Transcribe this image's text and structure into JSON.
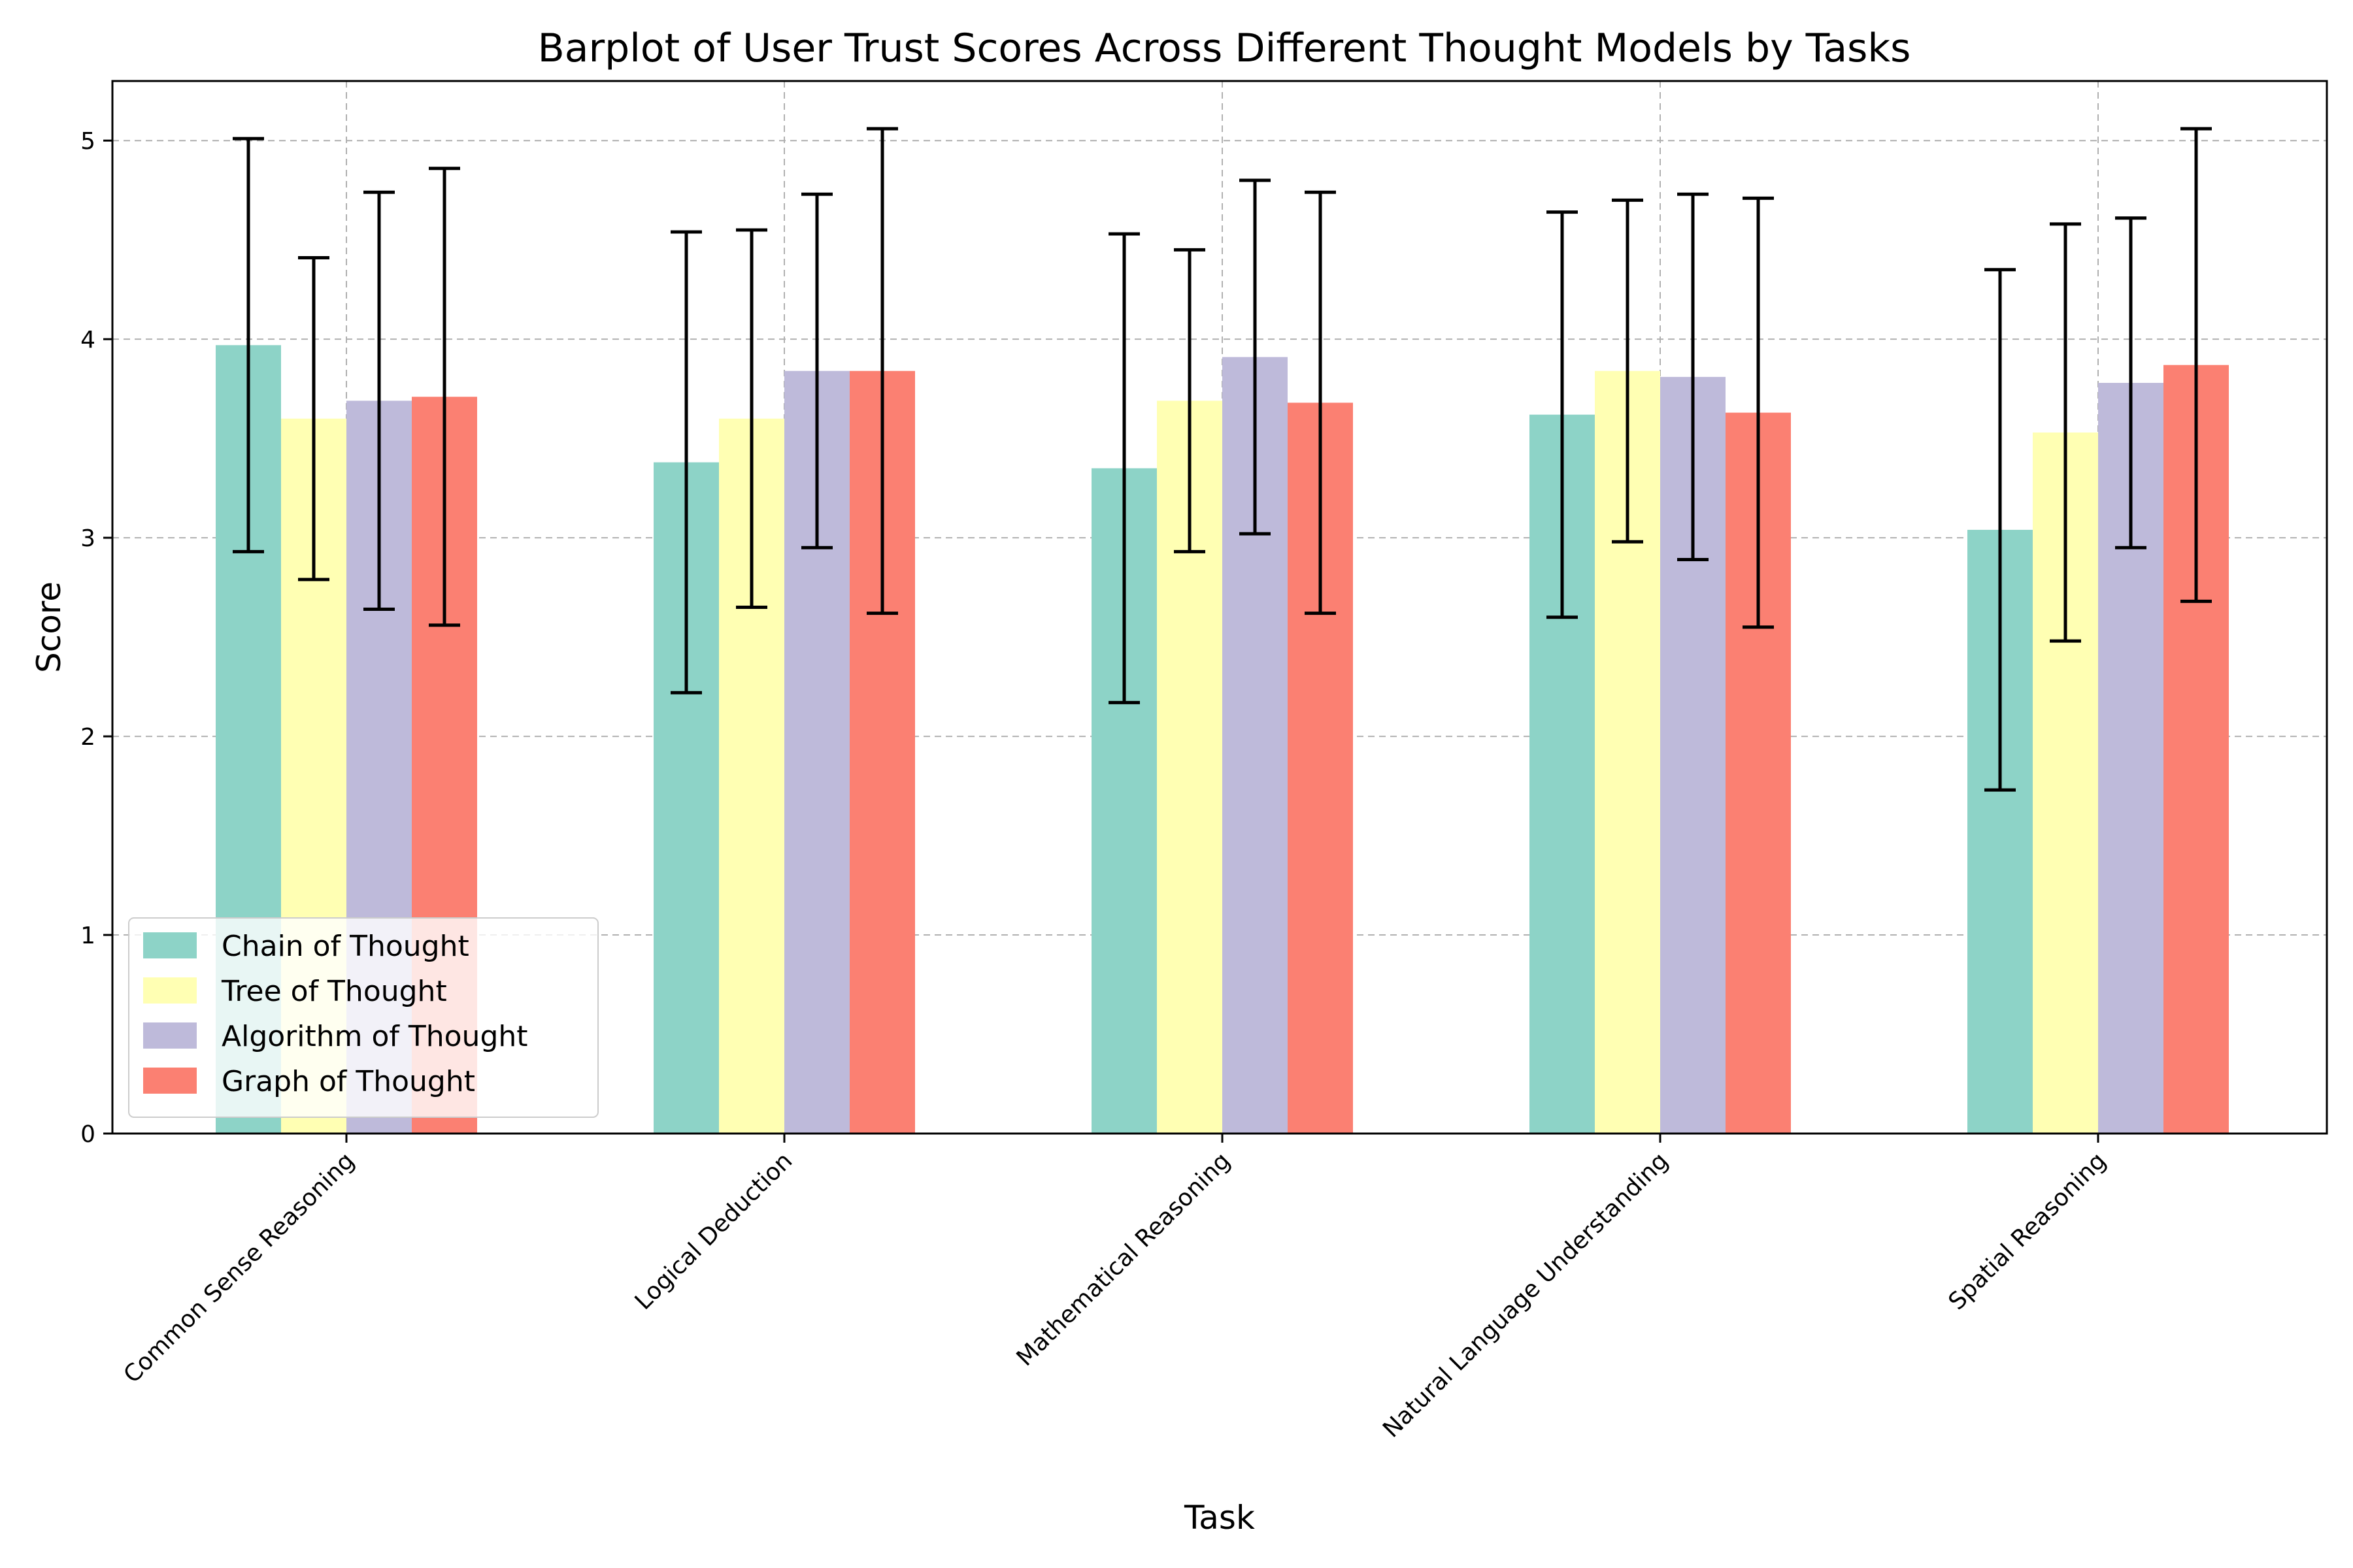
{
  "chart_data": {
    "type": "bar",
    "title": "Barplot of User Trust Scores Across Different Thought Models by Tasks",
    "xlabel": "Task",
    "ylabel": "Score",
    "ylim": [
      0,
      5.3
    ],
    "yticks": [
      0,
      1,
      2,
      3,
      4,
      5
    ],
    "grid": true,
    "legend_position": "lower-left",
    "categories": [
      "Common Sense Reasoning",
      "Logical Deduction",
      "Mathematical Reasoning",
      "Natural Language Understanding",
      "Spatial Reasoning"
    ],
    "series": [
      {
        "name": "Chain of Thought",
        "color": "#8dd3c7",
        "values": [
          3.97,
          3.38,
          3.35,
          3.62,
          3.04
        ],
        "errors": [
          1.04,
          1.16,
          1.18,
          1.02,
          1.31
        ]
      },
      {
        "name": "Tree of Thought",
        "color": "#ffffb3",
        "values": [
          3.6,
          3.6,
          3.69,
          3.84,
          3.53
        ],
        "errors": [
          0.81,
          0.95,
          0.76,
          0.86,
          1.05
        ]
      },
      {
        "name": "Algorithm of Thought",
        "color": "#bebada",
        "values": [
          3.69,
          3.84,
          3.91,
          3.81,
          3.78
        ],
        "errors": [
          1.05,
          0.89,
          0.89,
          0.92,
          0.83
        ]
      },
      {
        "name": "Graph of Thought",
        "color": "#fb8072",
        "values": [
          3.71,
          3.84,
          3.68,
          3.63,
          3.87
        ],
        "errors": [
          1.15,
          1.22,
          1.06,
          1.08,
          1.19
        ]
      }
    ]
  }
}
